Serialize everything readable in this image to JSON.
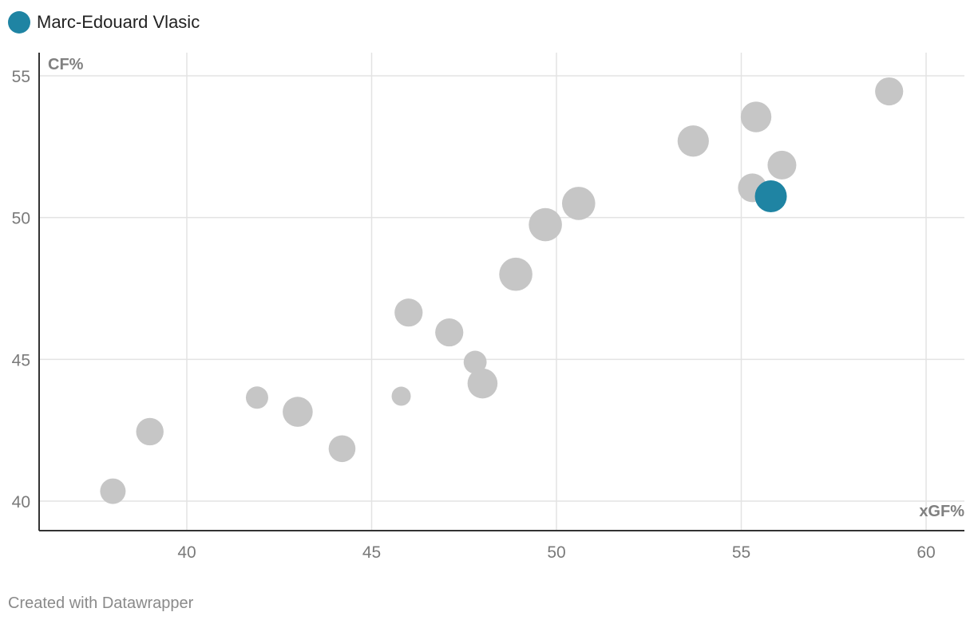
{
  "legend": {
    "label": "Marc-Edouard Vlasic",
    "color": "#1f84a3"
  },
  "footer": {
    "text": "Created with Datawrapper"
  },
  "chart_data": {
    "type": "scatter",
    "title": "",
    "xlabel": "xGF%",
    "ylabel": "CF%",
    "xlim": [
      36,
      61
    ],
    "ylim": [
      39,
      56
    ],
    "xticks": [
      40,
      45,
      50,
      55,
      60
    ],
    "yticks": [
      40,
      45,
      50,
      55
    ],
    "grid": true,
    "legend_position": "top-left",
    "colors": {
      "highlight": "#1f84a3",
      "other": "#c6c6c6"
    },
    "series": [
      {
        "name": "Marc-Edouard Vlasic",
        "points": [
          {
            "x": 55.8,
            "y": 50.75,
            "size": 1.0
          }
        ]
      },
      {
        "points": [
          {
            "x": 38.0,
            "y": 40.35,
            "size": 0.8
          },
          {
            "x": 39.0,
            "y": 42.45,
            "size": 0.86
          },
          {
            "x": 41.9,
            "y": 43.65,
            "size": 0.7
          },
          {
            "x": 43.0,
            "y": 43.15,
            "size": 0.94
          },
          {
            "x": 44.2,
            "y": 41.85,
            "size": 0.84
          },
          {
            "x": 45.8,
            "y": 43.7,
            "size": 0.6
          },
          {
            "x": 46.0,
            "y": 46.65,
            "size": 0.88
          },
          {
            "x": 47.1,
            "y": 45.95,
            "size": 0.88
          },
          {
            "x": 47.8,
            "y": 44.9,
            "size": 0.72
          },
          {
            "x": 48.0,
            "y": 44.15,
            "size": 0.94
          },
          {
            "x": 48.9,
            "y": 48.0,
            "size": 1.04
          },
          {
            "x": 49.7,
            "y": 49.75,
            "size": 1.04
          },
          {
            "x": 50.6,
            "y": 50.5,
            "size": 1.04
          },
          {
            "x": 53.7,
            "y": 52.7,
            "size": 0.98
          },
          {
            "x": 55.3,
            "y": 51.05,
            "size": 0.9
          },
          {
            "x": 55.4,
            "y": 53.55,
            "size": 0.96
          },
          {
            "x": 56.1,
            "y": 51.85,
            "size": 0.9
          },
          {
            "x": 59.0,
            "y": 54.45,
            "size": 0.88
          }
        ]
      }
    ]
  }
}
